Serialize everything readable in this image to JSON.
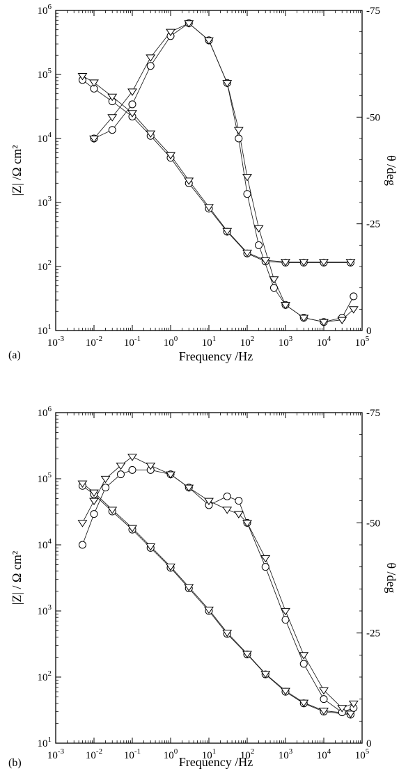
{
  "chart_data": [
    {
      "panel_label": "(a)",
      "type": "scatter",
      "xlabel": "Frequency /Hz",
      "ylabel_left": "|Z| /Ω cm²",
      "ylabel_right": "θ /deg",
      "x_scale": "log",
      "xlim": [
        0.001,
        100000
      ],
      "ylim_left": [
        10,
        1000000
      ],
      "ylim_right": [
        0,
        -75
      ],
      "x_ticks": [
        "10-3",
        "10-2",
        "10-1",
        "100",
        "101",
        "102",
        "103",
        "104",
        "105"
      ],
      "y_left_ticks": [
        "101",
        "102",
        "103",
        "104",
        "105",
        "106"
      ],
      "y_right_ticks": [
        "-75",
        "-50",
        "-25",
        "0"
      ],
      "series": [
        {
          "marker": "circle",
          "axis": "left",
          "x": [
            0.005,
            0.01,
            0.03,
            0.1,
            0.3,
            1,
            3,
            10,
            30,
            100,
            300,
            1000,
            3000,
            10000,
            50000
          ],
          "values": [
            82000,
            60000,
            38000,
            22000,
            11000,
            5000,
            2000,
            800,
            350,
            160,
            120,
            115,
            115,
            115,
            115
          ]
        },
        {
          "marker": "triangle",
          "axis": "left",
          "x": [
            0.005,
            0.01,
            0.03,
            0.1,
            0.3,
            1,
            3,
            10,
            30,
            100,
            300,
            1000,
            3000,
            10000,
            50000
          ],
          "values": [
            95000,
            75000,
            45000,
            25000,
            12000,
            5500,
            2200,
            850,
            360,
            165,
            125,
            118,
            118,
            118,
            118
          ]
        },
        {
          "marker": "circle",
          "axis": "right",
          "x": [
            0.01,
            0.03,
            0.1,
            0.3,
            1,
            3,
            10,
            30,
            60,
            100,
            200,
            500,
            1000,
            3000,
            10000,
            30000,
            60000
          ],
          "values": [
            -45,
            -47,
            -53,
            -62,
            -69,
            -72,
            -68,
            -58,
            -45,
            -32,
            -20,
            -10,
            -6,
            -3,
            -2,
            -3,
            -8
          ]
        },
        {
          "marker": "triangle",
          "axis": "right",
          "x": [
            0.01,
            0.03,
            0.1,
            0.3,
            1,
            3,
            10,
            30,
            60,
            100,
            200,
            500,
            1000,
            3000,
            10000,
            30000,
            60000
          ],
          "values": [
            -45,
            -50,
            -56,
            -64,
            -70,
            -72,
            -68,
            -58,
            -47,
            -36,
            -24,
            -12,
            -6,
            -3,
            -2,
            -2.5,
            -5
          ]
        }
      ]
    },
    {
      "panel_label": "(b)",
      "type": "scatter",
      "xlabel": "Frequency /Hz",
      "ylabel_left": "|Z| / Ω cm²",
      "ylabel_right": "θ /deg",
      "x_scale": "log",
      "xlim": [
        0.001,
        100000
      ],
      "ylim_left": [
        10,
        1000000
      ],
      "ylim_right": [
        0,
        -75
      ],
      "x_ticks": [
        "10-3",
        "10-2",
        "10-1",
        "100",
        "101",
        "102",
        "103",
        "104",
        "105"
      ],
      "y_left_ticks": [
        "101",
        "102",
        "103",
        "104",
        "105",
        "106"
      ],
      "y_right_ticks": [
        "-75",
        "-50",
        "-25",
        "0"
      ],
      "series": [
        {
          "marker": "circle",
          "axis": "left",
          "x": [
            0.005,
            0.01,
            0.03,
            0.1,
            0.3,
            1,
            3,
            10,
            30,
            100,
            300,
            1000,
            3000,
            10000,
            50000
          ],
          "values": [
            78000,
            58000,
            32000,
            17000,
            9000,
            4500,
            2200,
            1000,
            450,
            220,
            110,
            60,
            40,
            30,
            27
          ]
        },
        {
          "marker": "triangle",
          "axis": "left",
          "x": [
            0.005,
            0.01,
            0.03,
            0.1,
            0.3,
            1,
            3,
            10,
            30,
            100,
            300,
            1000,
            3000,
            10000,
            50000
          ],
          "values": [
            85000,
            62000,
            34000,
            18000,
            9500,
            4700,
            2300,
            1050,
            470,
            225,
            112,
            62,
            41,
            31,
            28
          ]
        },
        {
          "marker": "circle",
          "axis": "right",
          "x": [
            0.005,
            0.01,
            0.02,
            0.05,
            0.1,
            0.3,
            1,
            3,
            10,
            30,
            60,
            100,
            300,
            1000,
            3000,
            10000,
            30000,
            60000
          ],
          "values": [
            -45,
            -52,
            -58,
            -61,
            -62,
            -62,
            -61,
            -58,
            -54,
            -56,
            -55,
            -50,
            -40,
            -28,
            -18,
            -10,
            -7,
            -8
          ]
        },
        {
          "marker": "triangle",
          "axis": "right",
          "x": [
            0.005,
            0.01,
            0.02,
            0.05,
            0.1,
            0.3,
            1,
            3,
            10,
            30,
            60,
            100,
            300,
            1000,
            3000,
            10000,
            30000,
            60000
          ],
          "values": [
            -50,
            -55,
            -60,
            -63,
            -65,
            -63,
            -61,
            -58,
            -55,
            -53,
            -52,
            -50,
            -42,
            -30,
            -20,
            -12,
            -8,
            -9
          ]
        }
      ]
    }
  ]
}
